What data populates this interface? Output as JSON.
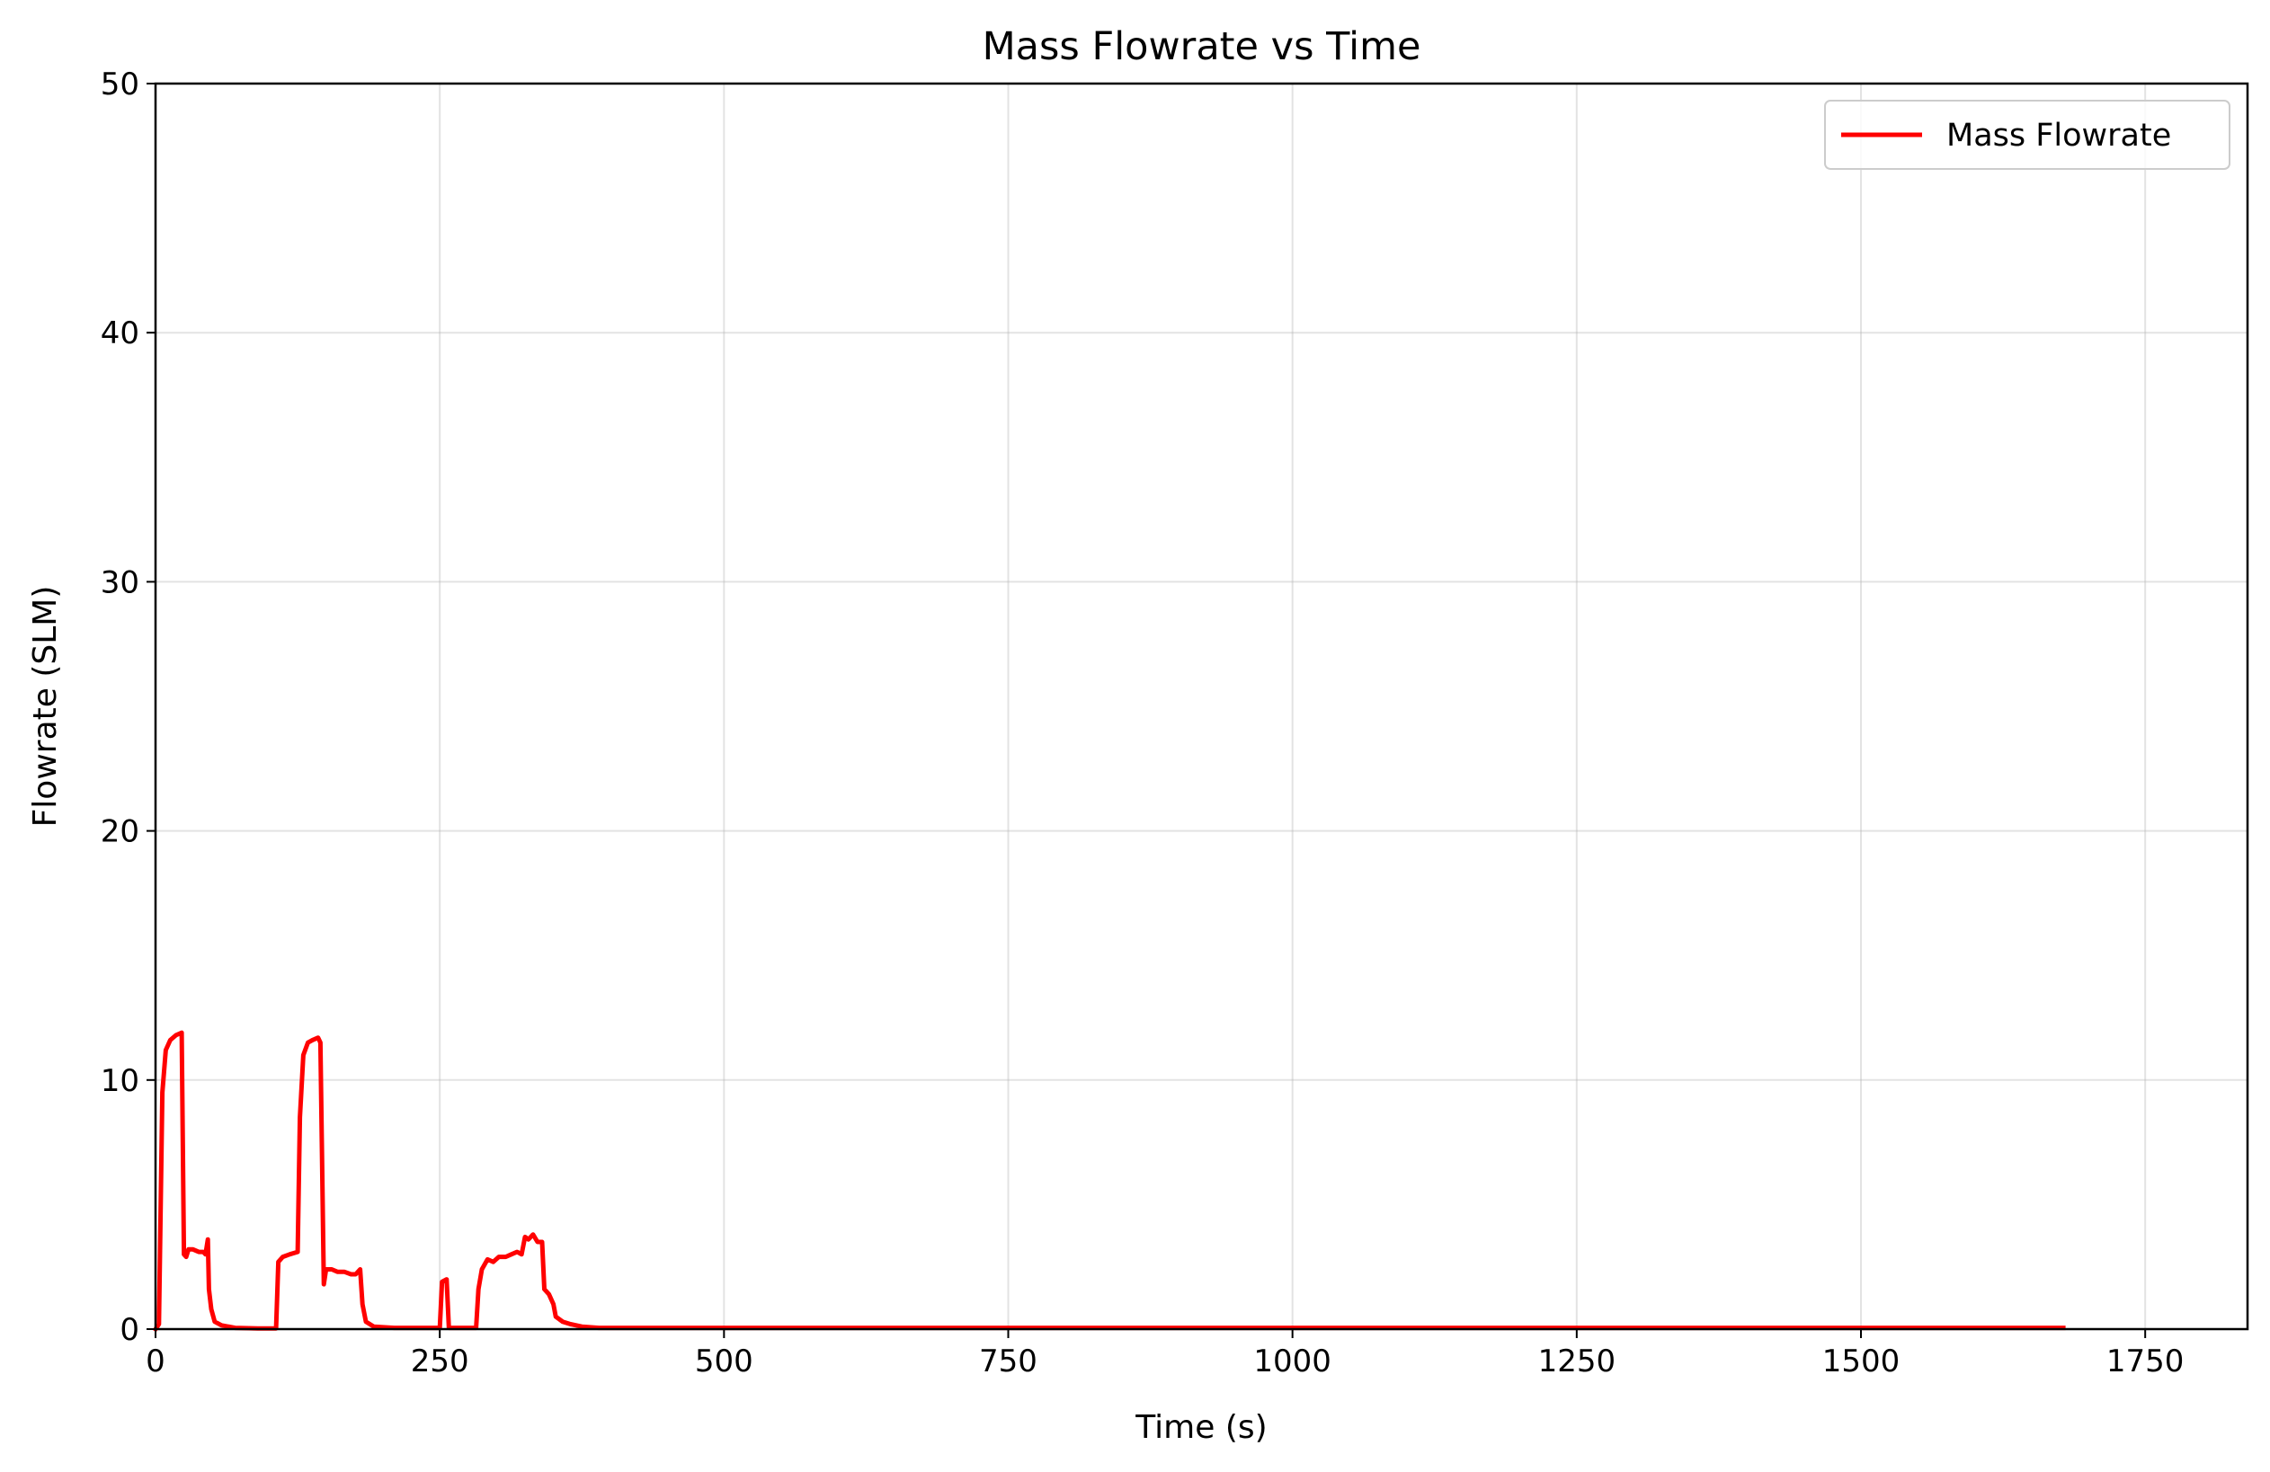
{
  "chart_data": {
    "type": "line",
    "title": "Mass Flowrate vs Time",
    "xlabel": "Time (s)",
    "ylabel": "Flowrate (SLM)",
    "xlim": [
      0,
      1840
    ],
    "ylim": [
      0,
      50
    ],
    "xticks": [
      0,
      250,
      500,
      750,
      1000,
      1250,
      1500,
      1750
    ],
    "xtick_labels": [
      "0",
      "250",
      "500",
      "750",
      "1000",
      "1250",
      "1500",
      "1750"
    ],
    "yticks": [
      0,
      10,
      20,
      30,
      40,
      50
    ],
    "ytick_labels": [
      "0",
      "10",
      "20",
      "30",
      "40",
      "50"
    ],
    "grid": true,
    "legend_position": "top-right",
    "series": [
      {
        "name": "Mass Flowrate",
        "color": "#ff0000",
        "points": [
          [
            0,
            0
          ],
          [
            3,
            0.2
          ],
          [
            6,
            9.5
          ],
          [
            9,
            11.2
          ],
          [
            13,
            11.6
          ],
          [
            18,
            11.8
          ],
          [
            23,
            11.9
          ],
          [
            25,
            3.0
          ],
          [
            27,
            2.9
          ],
          [
            29,
            3.2
          ],
          [
            33,
            3.2
          ],
          [
            38,
            3.1
          ],
          [
            42,
            3.1
          ],
          [
            44,
            3.0
          ],
          [
            46,
            3.6
          ],
          [
            47,
            1.6
          ],
          [
            49,
            0.8
          ],
          [
            52,
            0.3
          ],
          [
            58,
            0.15
          ],
          [
            70,
            0.05
          ],
          [
            90,
            0.03
          ],
          [
            106,
            0.03
          ],
          [
            108,
            2.7
          ],
          [
            112,
            2.9
          ],
          [
            118,
            3.0
          ],
          [
            125,
            3.1
          ],
          [
            127,
            8.5
          ],
          [
            130,
            11.0
          ],
          [
            134,
            11.5
          ],
          [
            138,
            11.6
          ],
          [
            143,
            11.7
          ],
          [
            145,
            11.5
          ],
          [
            148,
            1.8
          ],
          [
            150,
            2.4
          ],
          [
            155,
            2.4
          ],
          [
            160,
            2.3
          ],
          [
            166,
            2.3
          ],
          [
            172,
            2.2
          ],
          [
            176,
            2.2
          ],
          [
            180,
            2.4
          ],
          [
            182,
            1.0
          ],
          [
            185,
            0.3
          ],
          [
            192,
            0.1
          ],
          [
            210,
            0.05
          ],
          [
            240,
            0.05
          ],
          [
            250,
            0.05
          ],
          [
            252,
            1.9
          ],
          [
            256,
            2.0
          ],
          [
            258,
            0.05
          ],
          [
            282,
            0.05
          ],
          [
            284,
            1.6
          ],
          [
            287,
            2.4
          ],
          [
            292,
            2.8
          ],
          [
            297,
            2.7
          ],
          [
            302,
            2.9
          ],
          [
            308,
            2.9
          ],
          [
            313,
            3.0
          ],
          [
            318,
            3.1
          ],
          [
            322,
            3.0
          ],
          [
            325,
            3.7
          ],
          [
            328,
            3.6
          ],
          [
            332,
            3.8
          ],
          [
            336,
            3.5
          ],
          [
            340,
            3.5
          ],
          [
            342,
            1.6
          ],
          [
            346,
            1.4
          ],
          [
            350,
            1.0
          ],
          [
            352,
            0.5
          ],
          [
            358,
            0.3
          ],
          [
            365,
            0.2
          ],
          [
            375,
            0.1
          ],
          [
            390,
            0.05
          ],
          [
            420,
            0.05
          ],
          [
            600,
            0.05
          ],
          [
            1000,
            0.05
          ],
          [
            1400,
            0.05
          ],
          [
            1678,
            0.05
          ]
        ]
      }
    ]
  }
}
